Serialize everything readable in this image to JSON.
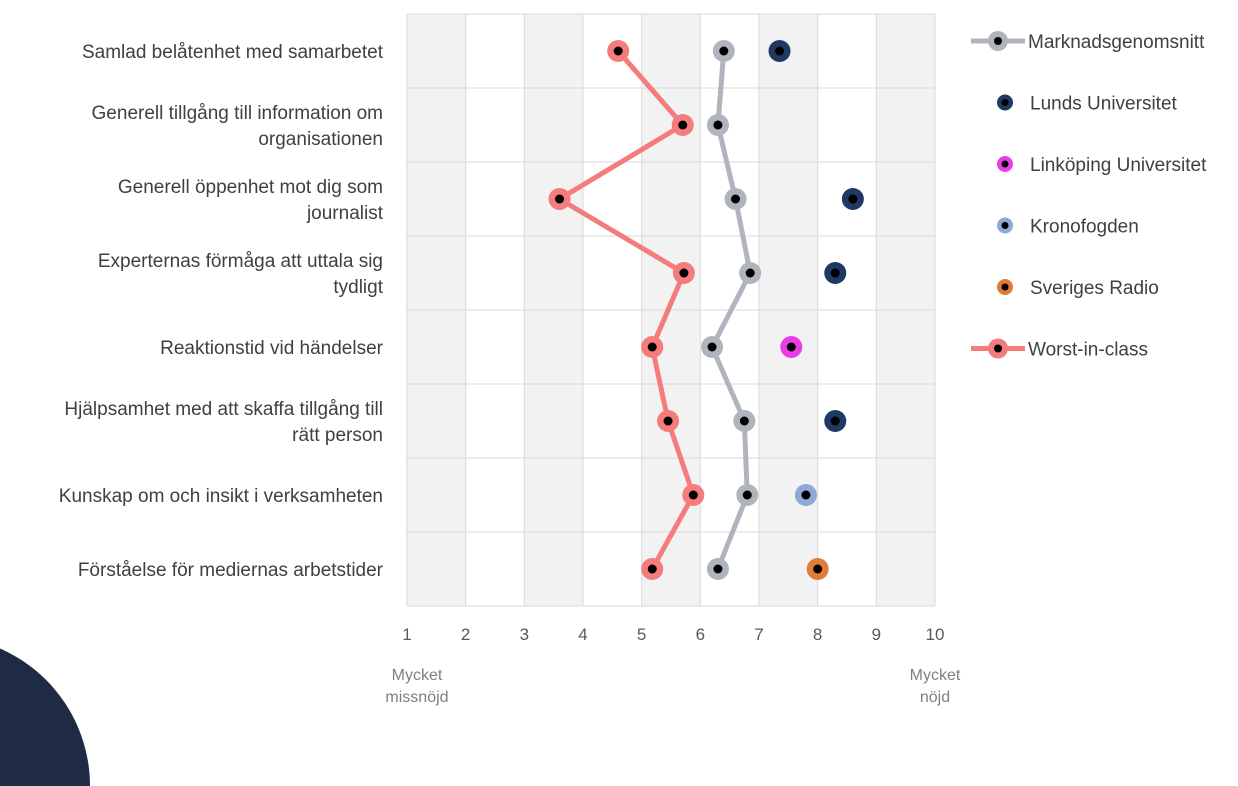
{
  "chart_data": {
    "type": "scatter",
    "orientation": "horizontal",
    "categories": [
      [
        "Samlad belåtenhet med samarbetet"
      ],
      [
        "Generell tillgång till information om",
        "organisationen"
      ],
      [
        "Generell öppenhet mot dig som",
        "journalist"
      ],
      [
        "Experternas förmåga att uttala sig",
        "tydligt"
      ],
      [
        "Reaktionstid vid händelser"
      ],
      [
        "Hjälpsamhet med att skaffa tillgång till",
        "rätt person"
      ],
      [
        "Kunskap om och insikt i verksamheten"
      ],
      [
        "Förståelse för mediernas arbetstider"
      ]
    ],
    "xlim": [
      1,
      10
    ],
    "xticks": [
      "1",
      "2",
      "3",
      "4",
      "5",
      "6",
      "7",
      "8",
      "9",
      "10"
    ],
    "scale_low_label": [
      "Mycket",
      "missnöjd"
    ],
    "scale_high_label": [
      "Mycket",
      "nöjd"
    ],
    "grid": true,
    "legend_position": "right",
    "series": [
      {
        "name": "Marknadsgenomsnitt",
        "style": "line",
        "color": "#b0b4bc",
        "values": [
          6.4,
          6.3,
          6.6,
          6.85,
          6.2,
          6.75,
          6.8,
          6.3
        ]
      },
      {
        "name": "Lunds Universitet",
        "style": "point",
        "color": "#1f3864",
        "values": [
          7.35,
          null,
          8.6,
          8.3,
          null,
          8.3,
          null,
          null
        ]
      },
      {
        "name": "Linköping Universitet",
        "style": "point",
        "color": "#e83ee8",
        "values": [
          null,
          null,
          null,
          null,
          7.55,
          null,
          null,
          null
        ]
      },
      {
        "name": "Kronofogden",
        "style": "point",
        "color": "#8fa8d8",
        "values": [
          null,
          null,
          null,
          null,
          null,
          null,
          7.8,
          null
        ]
      },
      {
        "name": "Sveriges Radio",
        "style": "point",
        "color": "#e07b39",
        "values": [
          null,
          null,
          null,
          null,
          null,
          null,
          null,
          8.0
        ]
      },
      {
        "name": "Worst-in-class",
        "style": "line",
        "color": "#f47c7c",
        "values": [
          4.6,
          5.7,
          3.6,
          5.72,
          5.18,
          5.45,
          5.88,
          5.18
        ]
      }
    ]
  },
  "colors": {
    "panel_fill": "#f2f2f2",
    "grid_line": "#d9d9d9",
    "inner_dot": "#000000",
    "corner_shape": "#1f2a44"
  }
}
